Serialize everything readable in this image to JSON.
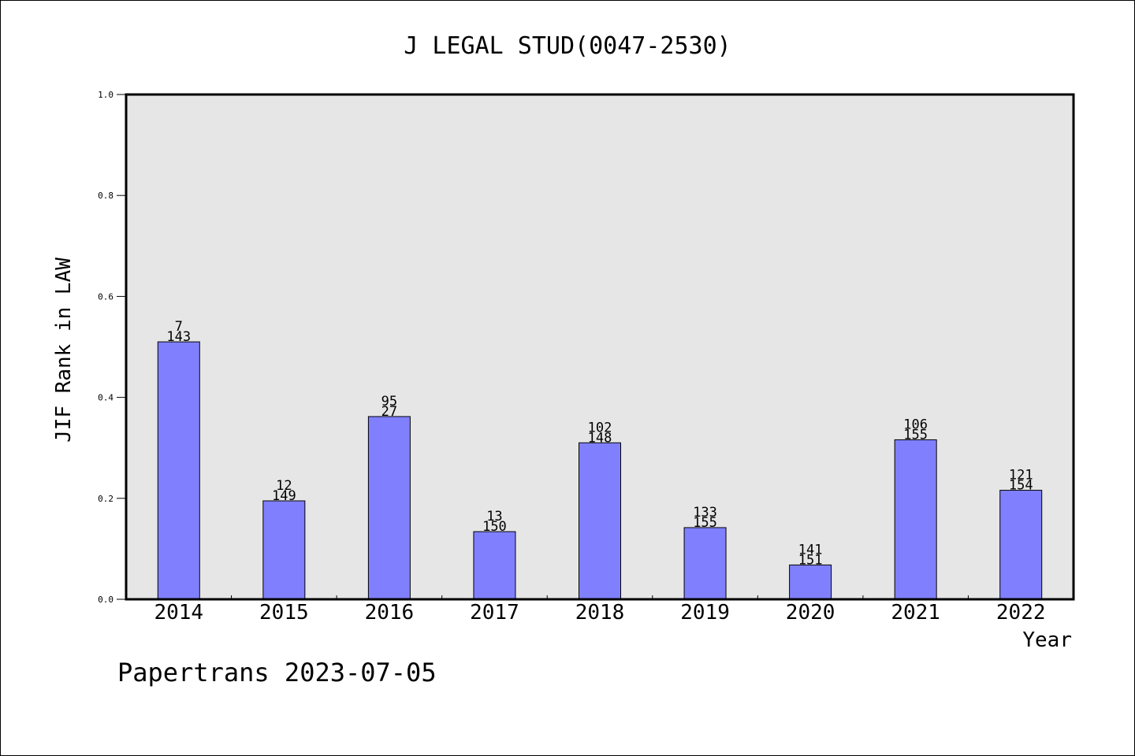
{
  "chart_data": {
    "type": "bar",
    "title": "J LEGAL STUD(0047-2530)",
    "xlabel": "Year",
    "ylabel": "JIF Rank in LAW",
    "ylim": [
      0,
      1.0
    ],
    "yticks": [
      "0.0",
      "0.2",
      "0.4",
      "0.6",
      "0.8",
      "1.0"
    ],
    "ytick_values": [
      0,
      0.2,
      0.4,
      0.6,
      0.8,
      1.0
    ],
    "categories": [
      "2014",
      "2015",
      "2016",
      "2017",
      "2018",
      "2019",
      "2020",
      "2021",
      "2022"
    ],
    "values": [
      0.51,
      0.195,
      0.362,
      0.134,
      0.31,
      0.142,
      0.068,
      0.316,
      0.216
    ],
    "labels_top": [
      "7",
      "12",
      "95",
      "13",
      "102",
      "133",
      "141",
      "106",
      "121"
    ],
    "labels_bottom": [
      "143",
      "149",
      "27",
      "150",
      "148",
      "155",
      "151",
      "155",
      "154"
    ],
    "colors": {
      "bar_fill": "#8080ff",
      "plot_background": "#e6e6e6",
      "axis": "#000000"
    }
  },
  "footer": {
    "text": "Papertrans 2023-07-05"
  }
}
